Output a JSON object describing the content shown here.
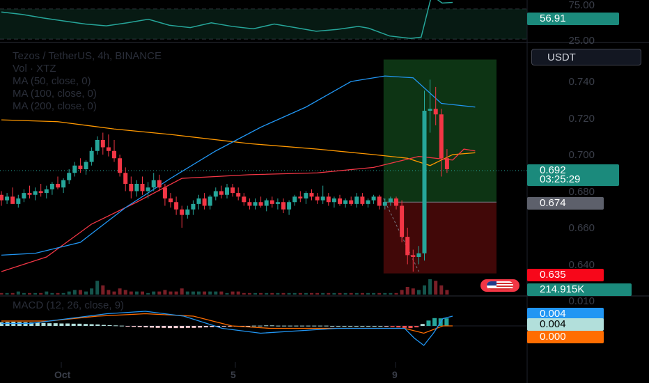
{
  "legend": {
    "symbol": "Tezos / TetherUS, 4h, BINANCE",
    "vol": "Vol · XTZ",
    "ma50": "MA (50, close, 0)",
    "ma100": "MA (100, close, 0)",
    "ma200": "MA (200, close, 0)"
  },
  "macd_legend": "MACD (12, 26, close, 9)",
  "currency_button": "USDT",
  "rsi": {
    "levels": [
      "75.00",
      "25.00"
    ],
    "value_tag": "56.91"
  },
  "price_axis": [
    "0.740",
    "0.720",
    "0.700",
    "0.680",
    "0.660",
    "0.640"
  ],
  "macd_axis": [
    "0.010"
  ],
  "date_axis": [
    "Oct",
    "5",
    "9"
  ],
  "tags": {
    "last_price": "0.692",
    "countdown": "03:25:29",
    "entry": "0.674",
    "stop": "0.635",
    "volume": "214.915K",
    "macd": "0.004",
    "signal": "0.004",
    "histogram": "0.000"
  },
  "colors": {
    "up": "#26a69a",
    "down": "#f23645",
    "ma50": "#2196f3",
    "ma100": "#f23645",
    "ma200": "#ff9800",
    "target_zone": "#0f3d18",
    "stop_zone": "#450808",
    "rsi": "#26a69a"
  },
  "chart_data": {
    "type": "candlestick",
    "title": "Tezos / TetherUS, 4h, BINANCE",
    "candles_ohlc": [
      [
        0.678,
        0.68,
        0.672,
        0.675
      ],
      [
        0.675,
        0.679,
        0.673,
        0.677
      ],
      [
        0.677,
        0.682,
        0.674,
        0.673
      ],
      [
        0.673,
        0.678,
        0.671,
        0.676
      ],
      [
        0.676,
        0.681,
        0.674,
        0.679
      ],
      [
        0.679,
        0.683,
        0.676,
        0.678
      ],
      [
        0.678,
        0.682,
        0.675,
        0.68
      ],
      [
        0.68,
        0.684,
        0.677,
        0.679
      ],
      [
        0.679,
        0.683,
        0.676,
        0.681
      ],
      [
        0.681,
        0.685,
        0.678,
        0.684
      ],
      [
        0.684,
        0.688,
        0.681,
        0.682
      ],
      [
        0.682,
        0.687,
        0.679,
        0.686
      ],
      [
        0.686,
        0.692,
        0.684,
        0.69
      ],
      [
        0.69,
        0.696,
        0.688,
        0.694
      ],
      [
        0.694,
        0.698,
        0.69,
        0.692
      ],
      [
        0.692,
        0.697,
        0.689,
        0.696
      ],
      [
        0.696,
        0.704,
        0.694,
        0.702
      ],
      [
        0.702,
        0.71,
        0.7,
        0.708
      ],
      [
        0.708,
        0.712,
        0.7,
        0.704
      ],
      [
        0.704,
        0.711,
        0.699,
        0.702
      ],
      [
        0.702,
        0.708,
        0.696,
        0.698
      ],
      [
        0.698,
        0.7,
        0.688,
        0.69
      ],
      [
        0.69,
        0.693,
        0.68,
        0.684
      ],
      [
        0.684,
        0.688,
        0.676,
        0.68
      ],
      [
        0.68,
        0.686,
        0.677,
        0.684
      ],
      [
        0.684,
        0.688,
        0.678,
        0.68
      ],
      [
        0.68,
        0.685,
        0.676,
        0.682
      ],
      [
        0.682,
        0.69,
        0.68,
        0.686
      ],
      [
        0.686,
        0.689,
        0.68,
        0.682
      ],
      [
        0.682,
        0.684,
        0.672,
        0.676
      ],
      [
        0.676,
        0.679,
        0.671,
        0.674
      ],
      [
        0.674,
        0.677,
        0.667,
        0.67
      ],
      [
        0.67,
        0.672,
        0.66,
        0.667
      ],
      [
        0.667,
        0.672,
        0.665,
        0.67
      ],
      [
        0.67,
        0.675,
        0.667,
        0.673
      ],
      [
        0.673,
        0.678,
        0.67,
        0.676
      ],
      [
        0.676,
        0.679,
        0.67,
        0.672
      ],
      [
        0.672,
        0.678,
        0.67,
        0.677
      ],
      [
        0.677,
        0.682,
        0.675,
        0.68
      ],
      [
        0.68,
        0.683,
        0.676,
        0.678
      ],
      [
        0.678,
        0.684,
        0.676,
        0.682
      ],
      [
        0.682,
        0.684,
        0.677,
        0.679
      ],
      [
        0.679,
        0.682,
        0.675,
        0.677
      ],
      [
        0.677,
        0.679,
        0.672,
        0.674
      ],
      [
        0.674,
        0.676,
        0.67,
        0.672
      ],
      [
        0.672,
        0.676,
        0.67,
        0.674
      ],
      [
        0.674,
        0.677,
        0.671,
        0.672
      ],
      [
        0.672,
        0.676,
        0.669,
        0.675
      ],
      [
        0.675,
        0.677,
        0.671,
        0.673
      ],
      [
        0.673,
        0.676,
        0.67,
        0.674
      ],
      [
        0.674,
        0.676,
        0.668,
        0.67
      ],
      [
        0.67,
        0.675,
        0.667,
        0.674
      ],
      [
        0.674,
        0.678,
        0.672,
        0.677
      ],
      [
        0.677,
        0.68,
        0.674,
        0.676
      ],
      [
        0.676,
        0.68,
        0.673,
        0.679
      ],
      [
        0.679,
        0.681,
        0.675,
        0.677
      ],
      [
        0.677,
        0.679,
        0.673,
        0.675
      ],
      [
        0.675,
        0.683,
        0.673,
        0.677
      ],
      [
        0.677,
        0.679,
        0.672,
        0.674
      ],
      [
        0.674,
        0.677,
        0.671,
        0.676
      ],
      [
        0.676,
        0.678,
        0.672,
        0.673
      ],
      [
        0.673,
        0.676,
        0.671,
        0.675
      ],
      [
        0.675,
        0.677,
        0.672,
        0.673
      ],
      [
        0.673,
        0.679,
        0.671,
        0.677
      ],
      [
        0.677,
        0.679,
        0.672,
        0.673
      ],
      [
        0.673,
        0.676,
        0.671,
        0.675
      ],
      [
        0.675,
        0.678,
        0.673,
        0.677
      ],
      [
        0.677,
        0.678,
        0.67,
        0.672
      ],
      [
        0.672,
        0.676,
        0.67,
        0.674
      ],
      [
        0.674,
        0.677,
        0.672,
        0.676
      ],
      [
        0.676,
        0.677,
        0.67,
        0.672
      ],
      [
        0.672,
        0.675,
        0.652,
        0.655
      ],
      [
        0.655,
        0.66,
        0.64,
        0.645
      ],
      [
        0.645,
        0.648,
        0.636,
        0.644
      ],
      [
        0.644,
        0.65,
        0.64,
        0.646
      ],
      [
        0.646,
        0.735,
        0.642,
        0.724
      ],
      [
        0.724,
        0.741,
        0.712,
        0.725
      ],
      [
        0.725,
        0.737,
        0.716,
        0.722
      ],
      [
        0.722,
        0.725,
        0.688,
        0.698
      ],
      [
        0.698,
        0.703,
        0.69,
        0.692
      ]
    ],
    "ma50": [
      [
        0,
        0.645
      ],
      [
        6,
        0.646
      ],
      [
        14,
        0.652
      ],
      [
        22,
        0.671
      ],
      [
        30,
        0.687
      ],
      [
        38,
        0.702
      ],
      [
        46,
        0.715
      ],
      [
        54,
        0.726
      ],
      [
        62,
        0.74
      ],
      [
        68,
        0.743
      ],
      [
        73,
        0.742
      ],
      [
        78,
        0.728
      ],
      [
        84,
        0.726
      ]
    ],
    "ma100": [
      [
        0,
        0.636
      ],
      [
        8,
        0.644
      ],
      [
        16,
        0.662
      ],
      [
        24,
        0.674
      ],
      [
        32,
        0.687
      ],
      [
        44,
        0.689
      ],
      [
        56,
        0.69
      ],
      [
        66,
        0.693
      ],
      [
        74,
        0.699
      ],
      [
        80,
        0.697
      ],
      [
        82,
        0.703
      ],
      [
        84,
        0.702
      ]
    ],
    "ma200": [
      [
        0,
        0.719
      ],
      [
        10,
        0.718
      ],
      [
        20,
        0.714
      ],
      [
        30,
        0.711
      ],
      [
        44,
        0.706
      ],
      [
        56,
        0.703
      ],
      [
        66,
        0.7
      ],
      [
        72,
        0.698
      ],
      [
        76,
        0.694
      ],
      [
        80,
        0.7
      ],
      [
        84,
        0.701
      ]
    ],
    "volume": [
      1,
      1,
      1,
      2,
      1,
      1,
      1,
      1,
      2,
      1,
      1,
      1,
      2,
      3,
      3,
      2,
      4,
      9,
      6,
      3,
      2,
      4,
      3,
      2,
      2,
      2,
      1,
      2,
      2,
      3,
      2,
      2,
      4,
      2,
      2,
      2,
      2,
      2,
      2,
      2,
      1,
      2,
      2,
      1,
      1,
      1,
      1,
      1,
      1,
      1,
      1,
      1,
      1,
      1,
      1,
      1,
      1,
      1,
      1,
      1,
      1,
      1,
      1,
      1,
      1,
      1,
      1,
      1,
      1,
      1,
      1,
      3,
      5,
      4,
      3,
      6,
      10,
      9,
      6,
      3
    ],
    "macd": [
      [
        0,
        0.001
      ],
      [
        6,
        0.001
      ],
      [
        14,
        0.003
      ],
      [
        22,
        0.005
      ],
      [
        30,
        0.006
      ],
      [
        38,
        0.004
      ],
      [
        46,
        -0.001
      ],
      [
        54,
        -0.003
      ],
      [
        62,
        -0.002
      ],
      [
        70,
        -0.001
      ],
      [
        78,
        -0.001
      ],
      [
        84,
        -0.001
      ],
      [
        86,
        -0.005
      ],
      [
        88,
        -0.008
      ],
      [
        90,
        -0.003
      ],
      [
        92,
        0.003
      ],
      [
        94,
        0.004
      ]
    ],
    "signal": [
      [
        0,
        0.002
      ],
      [
        10,
        0.002
      ],
      [
        20,
        0.004
      ],
      [
        30,
        0.005
      ],
      [
        40,
        0.004
      ],
      [
        48,
        0.0
      ],
      [
        56,
        -0.001
      ],
      [
        66,
        -0.001
      ],
      [
        76,
        -0.001
      ],
      [
        84,
        -0.001
      ],
      [
        88,
        -0.003
      ],
      [
        92,
        0.0
      ],
      [
        94,
        0.0
      ]
    ],
    "histogram": [
      0.0015,
      0.0016,
      0.0017,
      0.0016,
      0.0015,
      0.0014,
      0.0013,
      0.0012,
      0.0011,
      0.0011,
      0.001,
      0.001,
      0.0009,
      0.0009,
      0.0008,
      0.0007,
      0.0006,
      0.0004,
      0.0003,
      0.0002,
      0.0001,
      -0.0002,
      -0.0004,
      -0.0005,
      -0.0006,
      -0.0007,
      -0.0008,
      -0.0008,
      -0.0009,
      -0.0009,
      -0.0009,
      -0.0008,
      -0.0008,
      -0.0007,
      -0.0006,
      -0.0005,
      -0.0004,
      -0.0003,
      -0.0002,
      -0.0002,
      -0.0001,
      -0.0001,
      0.0001,
      0.0001,
      0.0002,
      0.0002,
      0.0001,
      0.0001,
      0.0001,
      0.0001,
      0.0001,
      0.0001,
      0.0001,
      0.0001,
      0.0001,
      0.0,
      0.0,
      0.0,
      0.0,
      0.0,
      0.0,
      0.0,
      0.0,
      0.0,
      -0.0002,
      -0.0004,
      -0.0006,
      -0.0008,
      -0.0009,
      -0.0006,
      0.0008,
      0.0022,
      0.0032,
      0.0031,
      0.0031
    ],
    "rsi": [
      [
        0,
        70
      ],
      [
        4,
        66
      ],
      [
        8,
        60
      ],
      [
        12,
        55
      ],
      [
        16,
        50
      ],
      [
        20,
        47
      ],
      [
        24,
        52
      ],
      [
        28,
        58
      ],
      [
        32,
        48
      ],
      [
        36,
        44
      ],
      [
        40,
        52
      ],
      [
        44,
        46
      ],
      [
        48,
        42
      ],
      [
        52,
        50
      ],
      [
        56,
        44
      ],
      [
        60,
        38
      ],
      [
        64,
        41
      ],
      [
        68,
        46
      ],
      [
        70,
        43
      ],
      [
        74,
        30
      ],
      [
        78,
        26
      ],
      [
        80,
        28
      ],
      [
        82,
        98
      ],
      [
        84,
        85
      ],
      [
        86,
        86
      ]
    ],
    "position": {
      "entry": 0.674,
      "stop": 0.635,
      "target": 0.752
    },
    "ylim": [
      0.625,
      0.754
    ],
    "x_labels": [
      "Oct",
      "5",
      "9"
    ]
  }
}
